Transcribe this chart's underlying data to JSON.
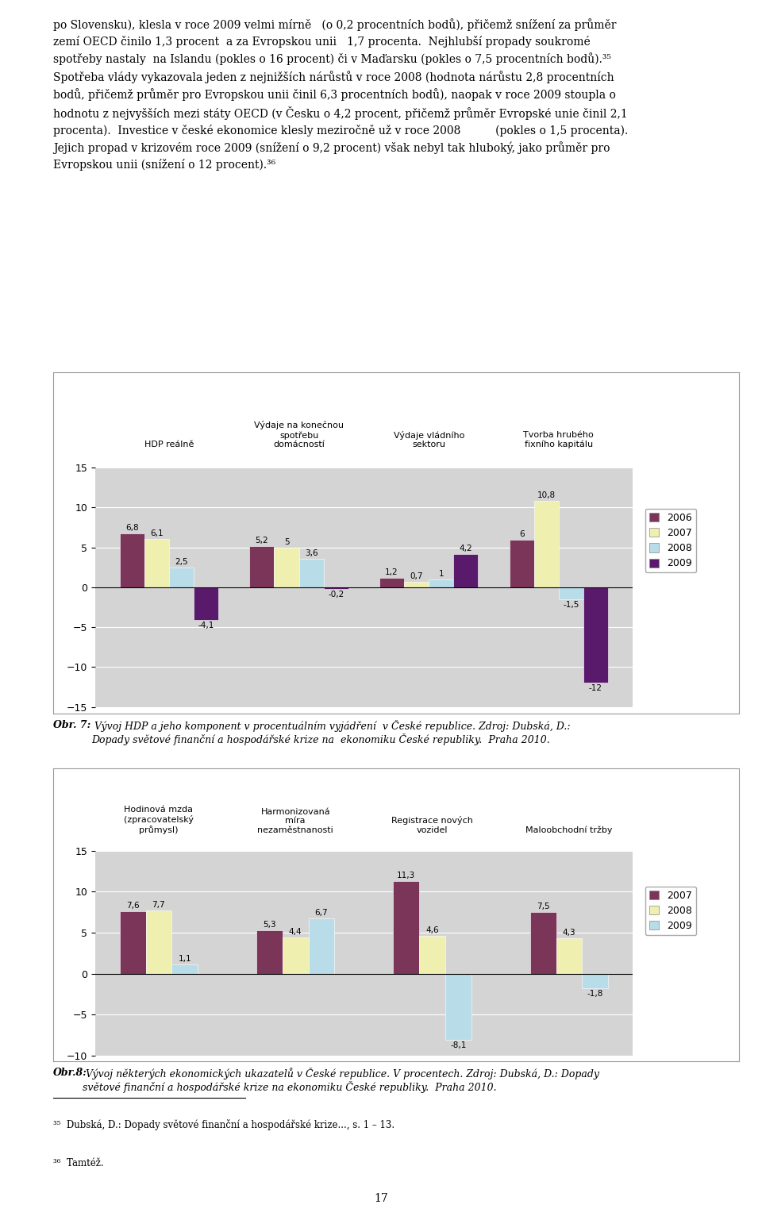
{
  "chart1": {
    "groups": [
      "HDP reálně",
      "Výdaje na konečnou\nspotřebu\ndomácností",
      "Výdaje vládního\nsektoru",
      "Tvorba hrubého\nfixního kapitálu"
    ],
    "series": {
      "2006": [
        6.8,
        5.2,
        1.2,
        6.0
      ],
      "2007": [
        6.1,
        5.0,
        0.7,
        10.8
      ],
      "2008": [
        2.5,
        3.6,
        1.0,
        -1.5
      ],
      "2009": [
        -4.1,
        -0.2,
        4.2,
        -12.0
      ]
    },
    "colors": {
      "2006": "#7B3558",
      "2007": "#EFEFB0",
      "2008": "#B8DCE8",
      "2009": "#5A1A6B"
    },
    "labels": [
      "2006",
      "2007",
      "2008",
      "2009"
    ],
    "ylim": [
      -15,
      15
    ],
    "yticks": [
      -15,
      -10,
      -5,
      0,
      5,
      10,
      15
    ],
    "caption_bold": "Obr. 7:",
    "caption_rest": " Vývoj HDP a jeho komponent v procentuálním vyjádření  v České republice. Zdroj: Dubská, D.:\nDopady světové finanční a hospodářské krize na  ekonomiku České republiky.  Praha 2010."
  },
  "chart2": {
    "groups": [
      "Hodinová mzda\n(zpracovatelský\nprůmysl)",
      "Harmonizovaná\nmíra\nnezaměstnanosti",
      "Registrace nových\nvozidel",
      "Maloobchodní tržby"
    ],
    "series": {
      "2007": [
        7.6,
        5.3,
        11.3,
        7.5
      ],
      "2008": [
        7.7,
        4.4,
        4.6,
        4.3
      ],
      "2009": [
        1.1,
        6.7,
        -8.1,
        -1.8
      ]
    },
    "colors": {
      "2007": "#7B3558",
      "2008": "#EFEFB0",
      "2009": "#B8DCE8"
    },
    "labels": [
      "2007",
      "2008",
      "2009"
    ],
    "ylim": [
      -10,
      15
    ],
    "yticks": [
      -10,
      -5,
      0,
      5,
      10,
      15
    ],
    "caption_bold": "Obr.8:",
    "caption_rest": " Vývoj některých ekonomických ukazatelů v České republice. V procentech. Zdroj: Dubská, D.: Dopady\nsvětové finanční a hospodářské krize na ekonomiku České republiky.  Praha 2010."
  },
  "plot_bg_color": "#D4D4D4",
  "bar_width": 0.19,
  "label_fontsize": 7.5,
  "axis_fontsize": 9,
  "group_label_fontsize": 8,
  "footnote1": "³⁵  Dubská, D.: Dopady světové finanční a hospodářské krize..., s. 1 – 13.",
  "footnote2": "³⁶  Tamtéž.",
  "page_number": "17"
}
